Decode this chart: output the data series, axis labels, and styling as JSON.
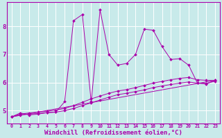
{
  "background_color": "#c8eaea",
  "grid_color": "#ffffff",
  "line_color": "#aa00aa",
  "marker": "D",
  "marker_size": 2,
  "xlabel": "Windchill (Refroidissement éolien,°C)",
  "xlabel_fontsize": 6.5,
  "xtick_labels": [
    "0",
    "1",
    "2",
    "3",
    "4",
    "5",
    "6",
    "7",
    "8",
    "9",
    "10",
    "11",
    "12",
    "13",
    "14",
    "15",
    "16",
    "17",
    "18",
    "19",
    "20",
    "21",
    "22",
    "23"
  ],
  "ytick_labels": [
    "5",
    "6",
    "7",
    "8"
  ],
  "xlim": [
    -0.5,
    23.5
  ],
  "ylim": [
    4.55,
    8.85
  ],
  "series": [
    {
      "x": [
        0,
        1,
        2,
        3,
        4,
        5,
        6,
        7,
        8,
        9,
        10,
        11,
        12,
        13,
        14,
        15,
        16,
        17,
        18,
        19,
        20,
        21,
        22,
        23
      ],
      "y": [
        4.78,
        4.92,
        4.85,
        4.88,
        4.93,
        4.95,
        5.32,
        8.2,
        8.42,
        5.32,
        8.58,
        7.0,
        6.62,
        6.68,
        7.0,
        7.9,
        7.86,
        7.28,
        6.82,
        6.85,
        6.62,
        5.98,
        5.95,
        6.08
      ],
      "has_markers": true
    },
    {
      "x": [
        0,
        23
      ],
      "y": [
        4.78,
        6.08
      ],
      "has_markers": false
    },
    {
      "x": [
        0,
        1,
        2,
        3,
        4,
        5,
        6,
        7,
        8,
        9,
        10,
        11,
        12,
        13,
        14,
        15,
        16,
        17,
        18,
        19,
        20,
        21,
        22,
        23
      ],
      "y": [
        4.78,
        4.85,
        4.88,
        4.9,
        4.93,
        4.95,
        5.0,
        5.08,
        5.18,
        5.28,
        5.38,
        5.48,
        5.57,
        5.62,
        5.68,
        5.74,
        5.82,
        5.88,
        5.93,
        5.98,
        6.02,
        5.98,
        5.97,
        6.05
      ],
      "has_markers": true
    },
    {
      "x": [
        0,
        1,
        2,
        3,
        4,
        5,
        6,
        7,
        8,
        9,
        10,
        11,
        12,
        13,
        14,
        15,
        16,
        17,
        18,
        19,
        20,
        21,
        22,
        23
      ],
      "y": [
        4.78,
        4.88,
        4.92,
        4.95,
        4.98,
        5.02,
        5.08,
        5.18,
        5.3,
        5.42,
        5.52,
        5.62,
        5.7,
        5.75,
        5.82,
        5.9,
        5.98,
        6.04,
        6.1,
        6.15,
        6.18,
        6.1,
        6.08,
        6.08
      ],
      "has_markers": true
    }
  ]
}
